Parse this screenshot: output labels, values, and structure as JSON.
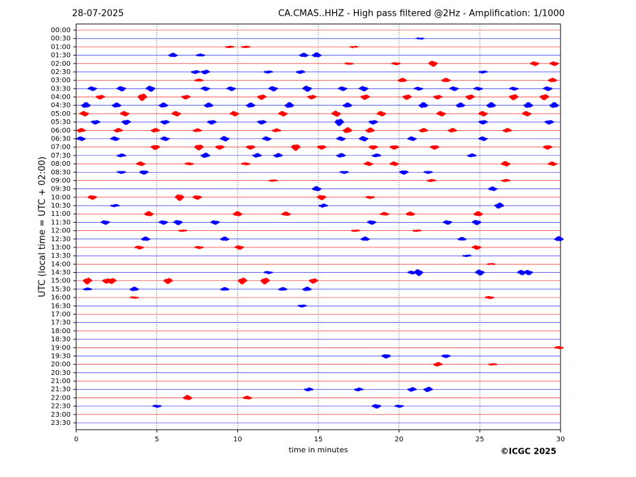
{
  "chart_data": {
    "type": "helicorder",
    "date": "28-07-2025",
    "title": "CA.CMAS..HHZ - High pass filtered @2Hz - Amplification: 1/1000",
    "y_label": "UTC (local time = UTC + 02:00)",
    "x_label": "time in minutes",
    "copyright": "©ICGC 2025",
    "xlim": [
      0,
      30
    ],
    "xticks": [
      0,
      5,
      10,
      15,
      20,
      25,
      30
    ],
    "grid": true,
    "colors": [
      "#ff0000",
      "#0000ff"
    ],
    "categories": [
      "00:00",
      "00:30",
      "01:00",
      "01:30",
      "02:00",
      "02:30",
      "03:00",
      "03:30",
      "04:00",
      "04:30",
      "05:00",
      "05:30",
      "06:00",
      "06:30",
      "07:00",
      "07:30",
      "08:00",
      "08:30",
      "09:00",
      "09:30",
      "10:00",
      "10:30",
      "11:00",
      "11:30",
      "12:00",
      "12:30",
      "13:00",
      "13:30",
      "14:00",
      "14:30",
      "15:00",
      "15:30",
      "16:00",
      "16:30",
      "17:00",
      "17:30",
      "18:00",
      "18:30",
      "19:00",
      "19:30",
      "20:00",
      "20:30",
      "21:00",
      "21:30",
      "22:00",
      "22:30",
      "23:00",
      "23:30"
    ],
    "bursts": [
      [],
      [
        [
          21.3,
          0.1
        ]
      ],
      [
        [
          9.5,
          0.15
        ],
        [
          10.5,
          0.15
        ],
        [
          17.2,
          0.1
        ]
      ],
      [
        [
          6.0,
          0.3
        ],
        [
          7.7,
          0.2
        ],
        [
          14.1,
          0.3
        ],
        [
          14.9,
          0.35
        ]
      ],
      [
        [
          16.9,
          0.15
        ],
        [
          19.8,
          0.2
        ],
        [
          22.1,
          0.4
        ],
        [
          28.4,
          0.3
        ],
        [
          29.6,
          0.3
        ]
      ],
      [
        [
          7.4,
          0.25
        ],
        [
          8.0,
          0.3
        ],
        [
          11.9,
          0.2
        ],
        [
          13.9,
          0.25
        ],
        [
          25.2,
          0.2
        ]
      ],
      [
        [
          7.6,
          0.2
        ],
        [
          20.2,
          0.3
        ],
        [
          22.9,
          0.3
        ],
        [
          29.5,
          0.3
        ]
      ],
      [
        [
          1.0,
          0.3
        ],
        [
          2.8,
          0.35
        ],
        [
          4.6,
          0.4
        ],
        [
          8.0,
          0.3
        ],
        [
          9.6,
          0.3
        ],
        [
          12.2,
          0.35
        ],
        [
          14.3,
          0.4
        ],
        [
          16.5,
          0.3
        ],
        [
          17.8,
          0.35
        ],
        [
          21.2,
          0.25
        ],
        [
          23.4,
          0.3
        ],
        [
          24.9,
          0.25
        ],
        [
          27.1,
          0.25
        ],
        [
          29.2,
          0.3
        ]
      ],
      [
        [
          1.5,
          0.3
        ],
        [
          4.1,
          0.5
        ],
        [
          6.8,
          0.3
        ],
        [
          11.5,
          0.35
        ],
        [
          14.6,
          0.3
        ],
        [
          17.9,
          0.35
        ],
        [
          20.5,
          0.35
        ],
        [
          22.4,
          0.3
        ],
        [
          24.4,
          0.35
        ],
        [
          27.1,
          0.4
        ],
        [
          29.0,
          0.4
        ]
      ],
      [
        [
          0.6,
          0.4
        ],
        [
          2.5,
          0.35
        ],
        [
          5.4,
          0.35
        ],
        [
          8.2,
          0.35
        ],
        [
          10.8,
          0.35
        ],
        [
          13.2,
          0.4
        ],
        [
          16.8,
          0.35
        ],
        [
          21.5,
          0.4
        ],
        [
          23.8,
          0.35
        ],
        [
          25.7,
          0.4
        ],
        [
          28.0,
          0.4
        ],
        [
          29.6,
          0.4
        ]
      ],
      [
        [
          0.5,
          0.35
        ],
        [
          3.0,
          0.35
        ],
        [
          6.2,
          0.35
        ],
        [
          9.8,
          0.35
        ],
        [
          12.8,
          0.35
        ],
        [
          16.1,
          0.4
        ],
        [
          18.9,
          0.35
        ],
        [
          22.6,
          0.35
        ],
        [
          25.2,
          0.35
        ],
        [
          27.9,
          0.35
        ]
      ],
      [
        [
          1.2,
          0.3
        ],
        [
          3.1,
          0.35
        ],
        [
          5.5,
          0.3
        ],
        [
          8.4,
          0.3
        ],
        [
          11.5,
          0.3
        ],
        [
          16.3,
          0.5
        ],
        [
          18.4,
          0.3
        ],
        [
          25.2,
          0.3
        ],
        [
          29.3,
          0.3
        ]
      ],
      [
        [
          0.3,
          0.3
        ],
        [
          2.6,
          0.3
        ],
        [
          4.9,
          0.3
        ],
        [
          7.5,
          0.25
        ],
        [
          12.4,
          0.25
        ],
        [
          16.8,
          0.4
        ],
        [
          18.2,
          0.35
        ],
        [
          21.5,
          0.3
        ],
        [
          23.3,
          0.3
        ],
        [
          26.7,
          0.3
        ]
      ],
      [
        [
          0.3,
          0.3
        ],
        [
          2.4,
          0.3
        ],
        [
          5.5,
          0.3
        ],
        [
          9.2,
          0.35
        ],
        [
          11.8,
          0.3
        ],
        [
          16.4,
          0.3
        ],
        [
          17.8,
          0.35
        ],
        [
          20.8,
          0.3
        ],
        [
          25.2,
          0.3
        ]
      ],
      [
        [
          4.9,
          0.35
        ],
        [
          7.6,
          0.4
        ],
        [
          8.9,
          0.3
        ],
        [
          10.8,
          0.3
        ],
        [
          13.6,
          0.45
        ],
        [
          15.2,
          0.3
        ],
        [
          18.4,
          0.3
        ],
        [
          19.7,
          0.3
        ],
        [
          22.2,
          0.3
        ],
        [
          29.2,
          0.3
        ]
      ],
      [
        [
          2.8,
          0.25
        ],
        [
          8.0,
          0.35
        ],
        [
          11.2,
          0.3
        ],
        [
          12.5,
          0.3
        ],
        [
          16.4,
          0.3
        ],
        [
          18.6,
          0.25
        ],
        [
          24.5,
          0.25
        ]
      ],
      [
        [
          4.0,
          0.3
        ],
        [
          7.0,
          0.2
        ],
        [
          10.5,
          0.2
        ],
        [
          18.1,
          0.3
        ],
        [
          19.7,
          0.3
        ],
        [
          26.6,
          0.35
        ],
        [
          29.5,
          0.3
        ]
      ],
      [
        [
          2.8,
          0.2
        ],
        [
          4.2,
          0.3
        ],
        [
          16.6,
          0.2
        ],
        [
          20.3,
          0.3
        ],
        [
          21.8,
          0.2
        ]
      ],
      [
        [
          12.2,
          0.15
        ],
        [
          22.0,
          0.2
        ],
        [
          26.6,
          0.2
        ]
      ],
      [
        [
          14.9,
          0.35
        ],
        [
          25.8,
          0.3
        ]
      ],
      [
        [
          1.0,
          0.3
        ],
        [
          6.4,
          0.45
        ],
        [
          7.5,
          0.3
        ],
        [
          15.2,
          0.35
        ],
        [
          18.2,
          0.2
        ]
      ],
      [
        [
          2.4,
          0.2
        ],
        [
          15.3,
          0.25
        ],
        [
          26.2,
          0.4
        ]
      ],
      [
        [
          4.5,
          0.35
        ],
        [
          10.0,
          0.35
        ],
        [
          13.0,
          0.3
        ],
        [
          19.1,
          0.25
        ],
        [
          20.7,
          0.3
        ],
        [
          24.9,
          0.35
        ]
      ],
      [
        [
          1.8,
          0.3
        ],
        [
          5.4,
          0.3
        ],
        [
          6.3,
          0.35
        ],
        [
          8.6,
          0.3
        ],
        [
          18.3,
          0.3
        ],
        [
          23.0,
          0.3
        ],
        [
          24.8,
          0.35
        ]
      ],
      [
        [
          6.6,
          0.15
        ],
        [
          17.3,
          0.15
        ],
        [
          21.1,
          0.15
        ]
      ],
      [
        [
          4.3,
          0.3
        ],
        [
          9.2,
          0.3
        ],
        [
          17.9,
          0.3
        ],
        [
          23.9,
          0.25
        ],
        [
          29.9,
          0.35
        ]
      ],
      [
        [
          3.9,
          0.25
        ],
        [
          7.6,
          0.2
        ],
        [
          10.1,
          0.3
        ],
        [
          24.8,
          0.3
        ]
      ],
      [
        [
          24.2,
          0.15
        ]
      ],
      [
        [
          25.7,
          0.1
        ]
      ],
      [
        [
          11.9,
          0.2
        ],
        [
          20.8,
          0.25
        ],
        [
          21.2,
          0.45
        ],
        [
          25.0,
          0.4
        ],
        [
          27.6,
          0.35
        ],
        [
          28.0,
          0.35
        ]
      ],
      [
        [
          0.7,
          0.45
        ],
        [
          1.9,
          0.35
        ],
        [
          2.2,
          0.4
        ],
        [
          5.7,
          0.4
        ],
        [
          10.3,
          0.45
        ],
        [
          11.7,
          0.45
        ],
        [
          14.7,
          0.35
        ]
      ],
      [
        [
          0.7,
          0.2
        ],
        [
          3.6,
          0.3
        ],
        [
          9.2,
          0.25
        ],
        [
          12.8,
          0.25
        ],
        [
          14.3,
          0.3
        ]
      ],
      [
        [
          3.6,
          0.15
        ],
        [
          25.6,
          0.2
        ]
      ],
      [
        [
          14.0,
          0.2
        ]
      ],
      [],
      [],
      [],
      [],
      [
        [
          29.9,
          0.2
        ]
      ],
      [
        [
          19.2,
          0.3
        ],
        [
          22.9,
          0.25
        ]
      ],
      [
        [
          22.4,
          0.3
        ],
        [
          25.8,
          0.15
        ]
      ],
      [],
      [],
      [
        [
          14.4,
          0.25
        ],
        [
          17.5,
          0.25
        ],
        [
          20.8,
          0.3
        ],
        [
          21.8,
          0.35
        ]
      ],
      [
        [
          6.9,
          0.35
        ],
        [
          10.6,
          0.25
        ]
      ],
      [
        [
          5.0,
          0.2
        ],
        [
          18.6,
          0.3
        ],
        [
          20.0,
          0.2
        ]
      ],
      [],
      []
    ]
  }
}
